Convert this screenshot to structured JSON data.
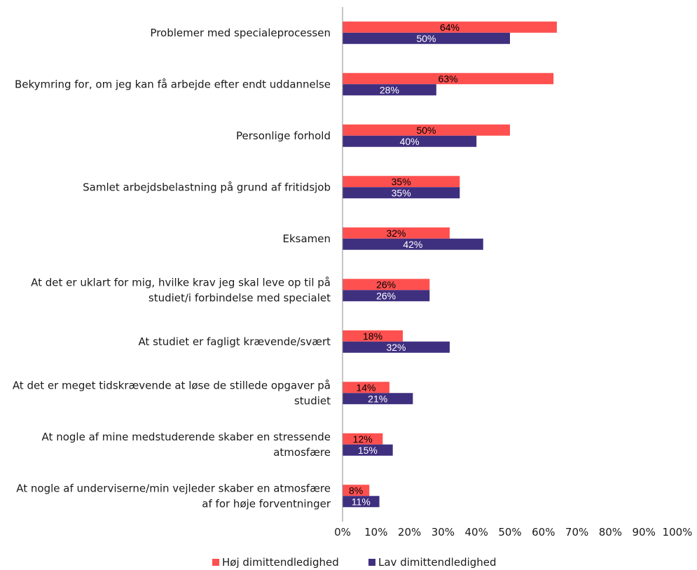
{
  "chart_data": {
    "type": "bar",
    "orientation": "horizontal",
    "categories": [
      [
        "Problemer med specialeprocessen"
      ],
      [
        "Bekymring for, om jeg kan få arbejde efter endt uddannelse"
      ],
      [
        "Personlige forhold"
      ],
      [
        "Samlet arbejdsbelastning på grund af fritidsjob"
      ],
      [
        "Eksamen"
      ],
      [
        "At det er uklart for mig, hvilke krav jeg skal leve op til på",
        "studiet/i forbindelse med specialet"
      ],
      [
        "At studiet er fagligt krævende/svært"
      ],
      [
        "At det er meget tidskrævende at løse de stillede opgaver på",
        "studiet"
      ],
      [
        "At nogle af mine medstuderende skaber en stressende",
        "atmosfære"
      ],
      [
        "At nogle af underviserne/min vejleder skaber en atmosfære",
        "af for høje forventninger"
      ]
    ],
    "series": [
      {
        "name": "Høj dimittendledighed",
        "color": "#ff5050",
        "label_color": "#000000",
        "values": [
          64,
          63,
          50,
          35,
          32,
          26,
          18,
          14,
          12,
          8
        ],
        "labels": [
          "64%",
          "63%",
          "50%",
          "35%",
          "32%",
          "26%",
          "18%",
          "14%",
          "12%",
          "8%"
        ]
      },
      {
        "name": "Lav dimittendledighed",
        "color": "#3f2f7f",
        "label_color": "#ffffff",
        "values": [
          50,
          28,
          40,
          35,
          42,
          26,
          32,
          21,
          15,
          11
        ],
        "labels": [
          "50%",
          "28%",
          "40%",
          "35%",
          "42%",
          "26%",
          "32%",
          "21%",
          "15%",
          "11%"
        ]
      }
    ],
    "xlim": [
      0,
      100
    ],
    "xticks": [
      "0%",
      "10%",
      "20%",
      "30%",
      "40%",
      "50%",
      "60%",
      "70%",
      "80%",
      "90%",
      "100%"
    ],
    "grid": false,
    "legend_position": "bottom"
  }
}
